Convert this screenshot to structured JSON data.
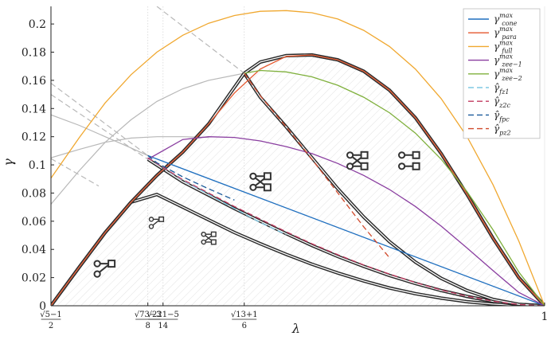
{
  "chart_data": {
    "type": "line",
    "xlabel": "λ",
    "ylabel": "γ",
    "xlim": [
      0.618034,
      1.0
    ],
    "ylim": [
      0,
      0.2125
    ],
    "grid": false,
    "legend_position": "top-right",
    "y_ticks": [
      {
        "value": 0,
        "label": "0"
      },
      {
        "value": 0.02,
        "label": "0.02"
      },
      {
        "value": 0.04,
        "label": "0.04"
      },
      {
        "value": 0.06,
        "label": "0.06"
      },
      {
        "value": 0.08,
        "label": "0.08"
      },
      {
        "value": 0.1,
        "label": "0.1"
      },
      {
        "value": 0.12,
        "label": "0.12"
      },
      {
        "value": 0.14,
        "label": "0.14"
      },
      {
        "value": 0.16,
        "label": "0.16"
      },
      {
        "value": 0.18,
        "label": "0.18"
      },
      {
        "value": 0.2,
        "label": "0.2"
      }
    ],
    "x_ticks": [
      {
        "value": 0.618034,
        "num": "√5−1",
        "den": "2"
      },
      {
        "value": 0.693,
        "num": "√73−3",
        "den": "8"
      },
      {
        "value": 0.70476,
        "num": "√221−5",
        "den": "14"
      },
      {
        "value": 0.767592,
        "num": "√13+1",
        "den": "6"
      },
      {
        "value": 1.0,
        "num": "1",
        "den": ""
      }
    ],
    "series": [
      {
        "name": "γ_cone^max",
        "label_base": "γ",
        "label_sub": "cone",
        "label_sup": "max",
        "color": "#1f6fbf",
        "dash": "solid",
        "x": [
          0.693,
          1.0
        ],
        "y": [
          0.1066,
          0.0
        ]
      },
      {
        "name": "γ_para^max",
        "label_base": "γ",
        "label_sub": "para",
        "label_sup": "max",
        "color": "#e4572e",
        "dash": "solid",
        "x": [
          0.618,
          0.64,
          0.66,
          0.68,
          0.7,
          0.72,
          0.74,
          0.76,
          0.78,
          0.8,
          0.82,
          0.84,
          0.86,
          0.88,
          0.9,
          0.92,
          0.94,
          0.96,
          0.98,
          1.0
        ],
        "y": [
          0.0,
          0.0275,
          0.052,
          0.0735,
          0.0925,
          0.109,
          0.129,
          0.151,
          0.168,
          0.177,
          0.178,
          0.1745,
          0.1665,
          0.153,
          0.1335,
          0.108,
          0.079,
          0.048,
          0.02,
          0.0
        ]
      },
      {
        "name": "γ_full^max",
        "label_base": "γ",
        "label_sub": "full",
        "label_sup": "max",
        "color": "#f0a830",
        "dash": "solid",
        "x": [
          0.618,
          0.64,
          0.66,
          0.68,
          0.7,
          0.72,
          0.74,
          0.76,
          0.78,
          0.8,
          0.82,
          0.84,
          0.86,
          0.88,
          0.9,
          0.92,
          0.94,
          0.96,
          0.98,
          1.0
        ],
        "y": [
          0.0905,
          0.1195,
          0.144,
          0.164,
          0.18,
          0.192,
          0.2005,
          0.206,
          0.209,
          0.2095,
          0.208,
          0.2035,
          0.1955,
          0.184,
          0.168,
          0.147,
          0.12,
          0.086,
          0.046,
          0.0
        ]
      },
      {
        "name": "γ_zee−1^max",
        "label_base": "γ",
        "label_sub": "zee−1",
        "label_sup": "max",
        "color": "#8a3ea0",
        "dash": "solid",
        "x": [
          0.693,
          0.72,
          0.74,
          0.76,
          0.78,
          0.8,
          0.82,
          0.84,
          0.86,
          0.88,
          0.9,
          0.92,
          0.94,
          0.96,
          0.98,
          1.0
        ],
        "y": [
          0.104,
          0.118,
          0.12,
          0.1195,
          0.117,
          0.113,
          0.108,
          0.101,
          0.0925,
          0.0825,
          0.0705,
          0.0565,
          0.041,
          0.025,
          0.0095,
          0.0
        ]
      },
      {
        "name": "γ_zee−2^max",
        "label_base": "γ",
        "label_sub": "zee−2",
        "label_sup": "max",
        "color": "#7fb03c",
        "dash": "solid",
        "x": [
          0.7676,
          0.78,
          0.8,
          0.82,
          0.84,
          0.86,
          0.88,
          0.9,
          0.92,
          0.94,
          0.96,
          0.98,
          1.0
        ],
        "y": [
          0.165,
          0.167,
          0.166,
          0.1625,
          0.1565,
          0.148,
          0.137,
          0.1225,
          0.104,
          0.081,
          0.054,
          0.024,
          0.0
        ]
      },
      {
        "name": "γ̂_fz1",
        "label_base": "γ̂",
        "label_sub": "fz1",
        "label_sup": "",
        "color": "#7ec8e3",
        "dash": "dashed",
        "x": [
          0.693,
          0.72,
          0.74,
          0.76,
          0.78,
          0.8
        ],
        "y": [
          0.105,
          0.089,
          0.079,
          0.069,
          0.059,
          0.0505
        ]
      },
      {
        "name": "γ̂_z2c",
        "label_base": "γ̂",
        "label_sub": "z2c",
        "label_sup": "",
        "color": "#c0395f",
        "dash": "dashed",
        "x": [
          0.693,
          0.72,
          0.74,
          0.76,
          0.78,
          0.8,
          0.82,
          0.84,
          0.86,
          0.88,
          0.9,
          0.92,
          0.94,
          0.96,
          0.98,
          1.0
        ],
        "y": [
          0.105,
          0.0895,
          0.08,
          0.0705,
          0.0615,
          0.0525,
          0.044,
          0.0362,
          0.029,
          0.0225,
          0.0165,
          0.0112,
          0.0068,
          0.0032,
          0.0009,
          0.0
        ]
      },
      {
        "name": "γ̂_fpc",
        "label_base": "γ̂",
        "label_sub": "fpc",
        "label_sup": "",
        "color": "#1a5a9a",
        "dash": "dashed",
        "x": [
          0.693,
          0.7,
          0.72,
          0.74,
          0.76
        ],
        "y": [
          0.1066,
          0.1015,
          0.0915,
          0.083,
          0.075
        ]
      },
      {
        "name": "γ̂_pz2",
        "label_base": "γ̂",
        "label_sub": "pz2",
        "label_sup": "",
        "color": "#d0492b",
        "dash": "dashed",
        "x": [
          0.7676,
          0.78,
          0.8,
          0.82,
          0.84,
          0.86,
          0.88
        ],
        "y": [
          0.165,
          0.149,
          0.127,
          0.104,
          0.08,
          0.056,
          0.034
        ]
      }
    ],
    "boundaries": [
      {
        "name": "lower-band",
        "x": [
          0.618,
          0.64,
          0.66,
          0.68,
          0.7,
          0.72,
          0.74,
          0.76,
          0.78,
          0.8,
          0.82,
          0.84,
          0.86,
          0.88,
          0.9,
          0.92,
          0.94,
          0.96,
          0.98,
          1.0
        ],
        "y": [
          0.0,
          0.0275,
          0.052,
          0.0735,
          0.079,
          0.07,
          0.061,
          0.052,
          0.044,
          0.0365,
          0.0295,
          0.0232,
          0.0176,
          0.0126,
          0.0086,
          0.0054,
          0.0029,
          0.0012,
          0.0003,
          0.0
        ]
      },
      {
        "name": "middle-band",
        "x": [
          0.693,
          0.72,
          0.74,
          0.76,
          0.78,
          0.8,
          0.82,
          0.84,
          0.86,
          0.88,
          0.9,
          0.92,
          0.94,
          0.96,
          0.98,
          1.0
        ],
        "y": [
          0.104,
          0.088,
          0.0785,
          0.069,
          0.06,
          0.0512,
          0.0428,
          0.035,
          0.028,
          0.0215,
          0.0158,
          0.0108,
          0.0066,
          0.0031,
          0.0009,
          0.0
        ]
      },
      {
        "name": "upper-band",
        "x": [
          0.7676,
          0.78,
          0.8,
          0.82,
          0.84,
          0.86,
          0.88,
          0.9,
          0.92,
          0.94,
          0.96,
          0.98,
          1.0
        ],
        "y": [
          0.165,
          0.148,
          0.127,
          0.105,
          0.083,
          0.063,
          0.0455,
          0.031,
          0.0195,
          0.0108,
          0.0045,
          0.001,
          0.0
        ]
      },
      {
        "name": "outer-left",
        "x": [
          0.618,
          0.64,
          0.66,
          0.68,
          0.7,
          0.72,
          0.74,
          0.7676
        ],
        "y": [
          0.0,
          0.0275,
          0.052,
          0.0735,
          0.0925,
          0.109,
          0.129,
          0.165
        ]
      },
      {
        "name": "outer-right",
        "x": [
          0.7676,
          0.78,
          0.8,
          0.82,
          0.84,
          0.86,
          0.88,
          0.9,
          0.92,
          0.94,
          0.96,
          0.98,
          1.0
        ],
        "y": [
          0.165,
          0.173,
          0.1775,
          0.178,
          0.1745,
          0.1665,
          0.153,
          0.1335,
          0.108,
          0.079,
          0.048,
          0.02,
          0.0
        ]
      }
    ],
    "gray_curves": [
      {
        "dash": "solid",
        "x": [
          0.618,
          0.64,
          0.66,
          0.68,
          0.7,
          0.72,
          0.74,
          0.7676
        ],
        "y": [
          0.072,
          0.096,
          0.116,
          0.132,
          0.145,
          0.154,
          0.16,
          0.165
        ]
      },
      {
        "dash": "solid",
        "x": [
          0.618,
          0.64,
          0.66,
          0.68,
          0.7,
          0.72,
          0.74
        ],
        "y": [
          0.105,
          0.111,
          0.116,
          0.119,
          0.12,
          0.12,
          0.1195
        ]
      },
      {
        "dash": "solid",
        "x": [
          0.618,
          0.64,
          0.66,
          0.68,
          0.693
        ],
        "y": [
          0.1355,
          0.128,
          0.12,
          0.112,
          0.1066
        ]
      },
      {
        "dash": "dashed",
        "x": [
          0.618,
          0.693
        ],
        "y": [
          0.158,
          0.1066
        ]
      },
      {
        "dash": "dashed",
        "x": [
          0.618,
          0.693
        ],
        "y": [
          0.15,
          0.104
        ]
      },
      {
        "dash": "dashed",
        "x": [
          0.618,
          0.655
        ],
        "y": [
          0.1045,
          0.085
        ]
      },
      {
        "dash": "dashed",
        "x": [
          0.7,
          0.7676
        ],
        "y": [
          0.2125,
          0.165
        ]
      }
    ],
    "ref_lines_x": [
      0.693,
      0.70476,
      0.767592
    ],
    "region_icons": [
      {
        "name": "icon-bottom-left",
        "kind": "dot-square-diag",
        "x": 0.66,
        "y": 0.0265,
        "scale": 1.0
      },
      {
        "name": "icon-small-left",
        "kind": "dot-square-diag",
        "x": 0.7,
        "y": 0.059,
        "scale": 0.7
      },
      {
        "name": "icon-small-mid",
        "kind": "dot-dot-cross",
        "x": 0.74,
        "y": 0.048,
        "scale": 0.7
      },
      {
        "name": "icon-mid-cross",
        "kind": "dot-dot-cross",
        "x": 0.78,
        "y": 0.088,
        "scale": 1.0
      },
      {
        "name": "icon-right-cross",
        "kind": "dot-dot-cross",
        "x": 0.855,
        "y": 0.103,
        "scale": 1.0
      },
      {
        "name": "icon-right-pair",
        "kind": "dot-square-pair",
        "x": 0.895,
        "y": 0.103,
        "scale": 1.0
      }
    ]
  }
}
